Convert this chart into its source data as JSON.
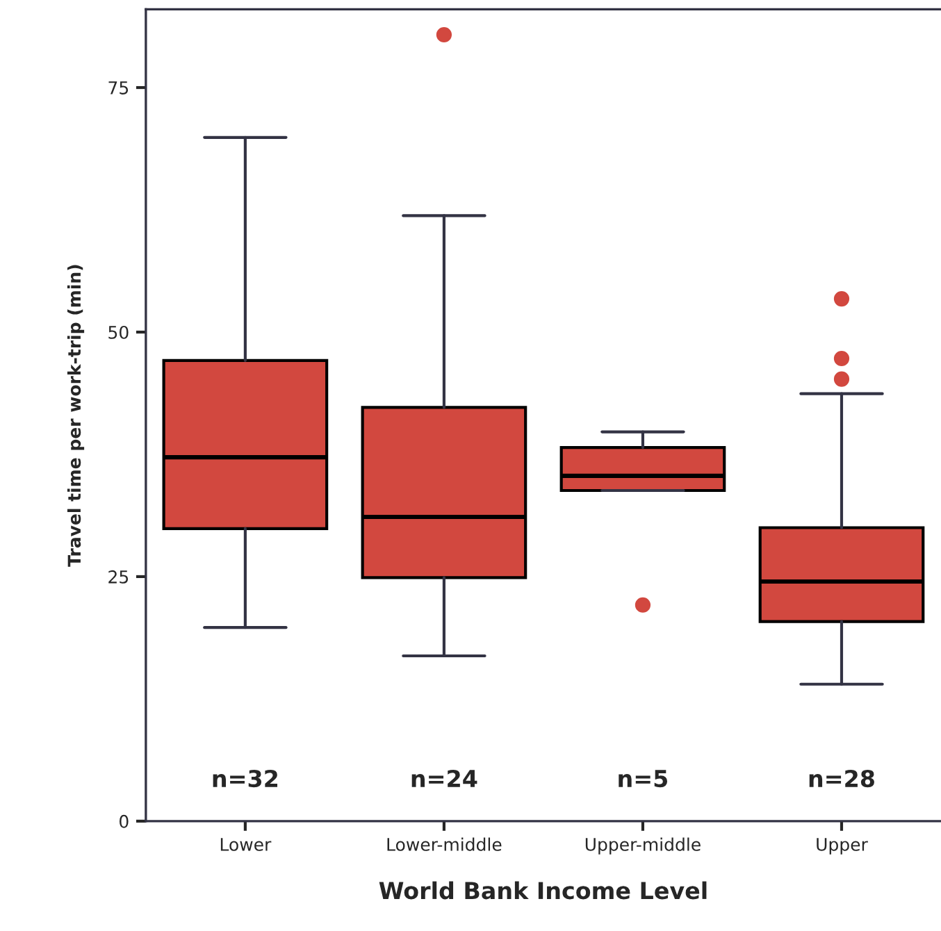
{
  "chart_data": {
    "type": "box",
    "xlabel": "World Bank Income Level",
    "ylabel": "Travel time per work-trip (min)",
    "categories": [
      "Lower",
      "Lower-middle",
      "Upper-middle",
      "Upper"
    ],
    "boxes": [
      {
        "low": 19.8,
        "q1": 29.9,
        "median": 37.2,
        "q3": 47.1,
        "high": 69.9
      },
      {
        "low": 16.9,
        "q1": 24.9,
        "median": 31.1,
        "q3": 42.3,
        "high": 61.9,
        "outliers": [
          80.4
        ]
      },
      {
        "low": 33.8,
        "q1": 33.8,
        "median": 35.3,
        "q3": 38.2,
        "high": 39.8,
        "outliers": [
          22.1
        ]
      },
      {
        "low": 14.0,
        "q1": 20.4,
        "median": 24.5,
        "q3": 30.0,
        "high": 43.7,
        "outliers": [
          45.2,
          47.3,
          53.4
        ]
      }
    ],
    "color": "#d2483f",
    "ylim": [
      0,
      83
    ],
    "yticks": [
      0,
      25,
      50,
      75
    ],
    "grid": false,
    "legend": false,
    "annotations": [
      "n=32",
      "n=24",
      "n=5",
      "n=28"
    ]
  }
}
